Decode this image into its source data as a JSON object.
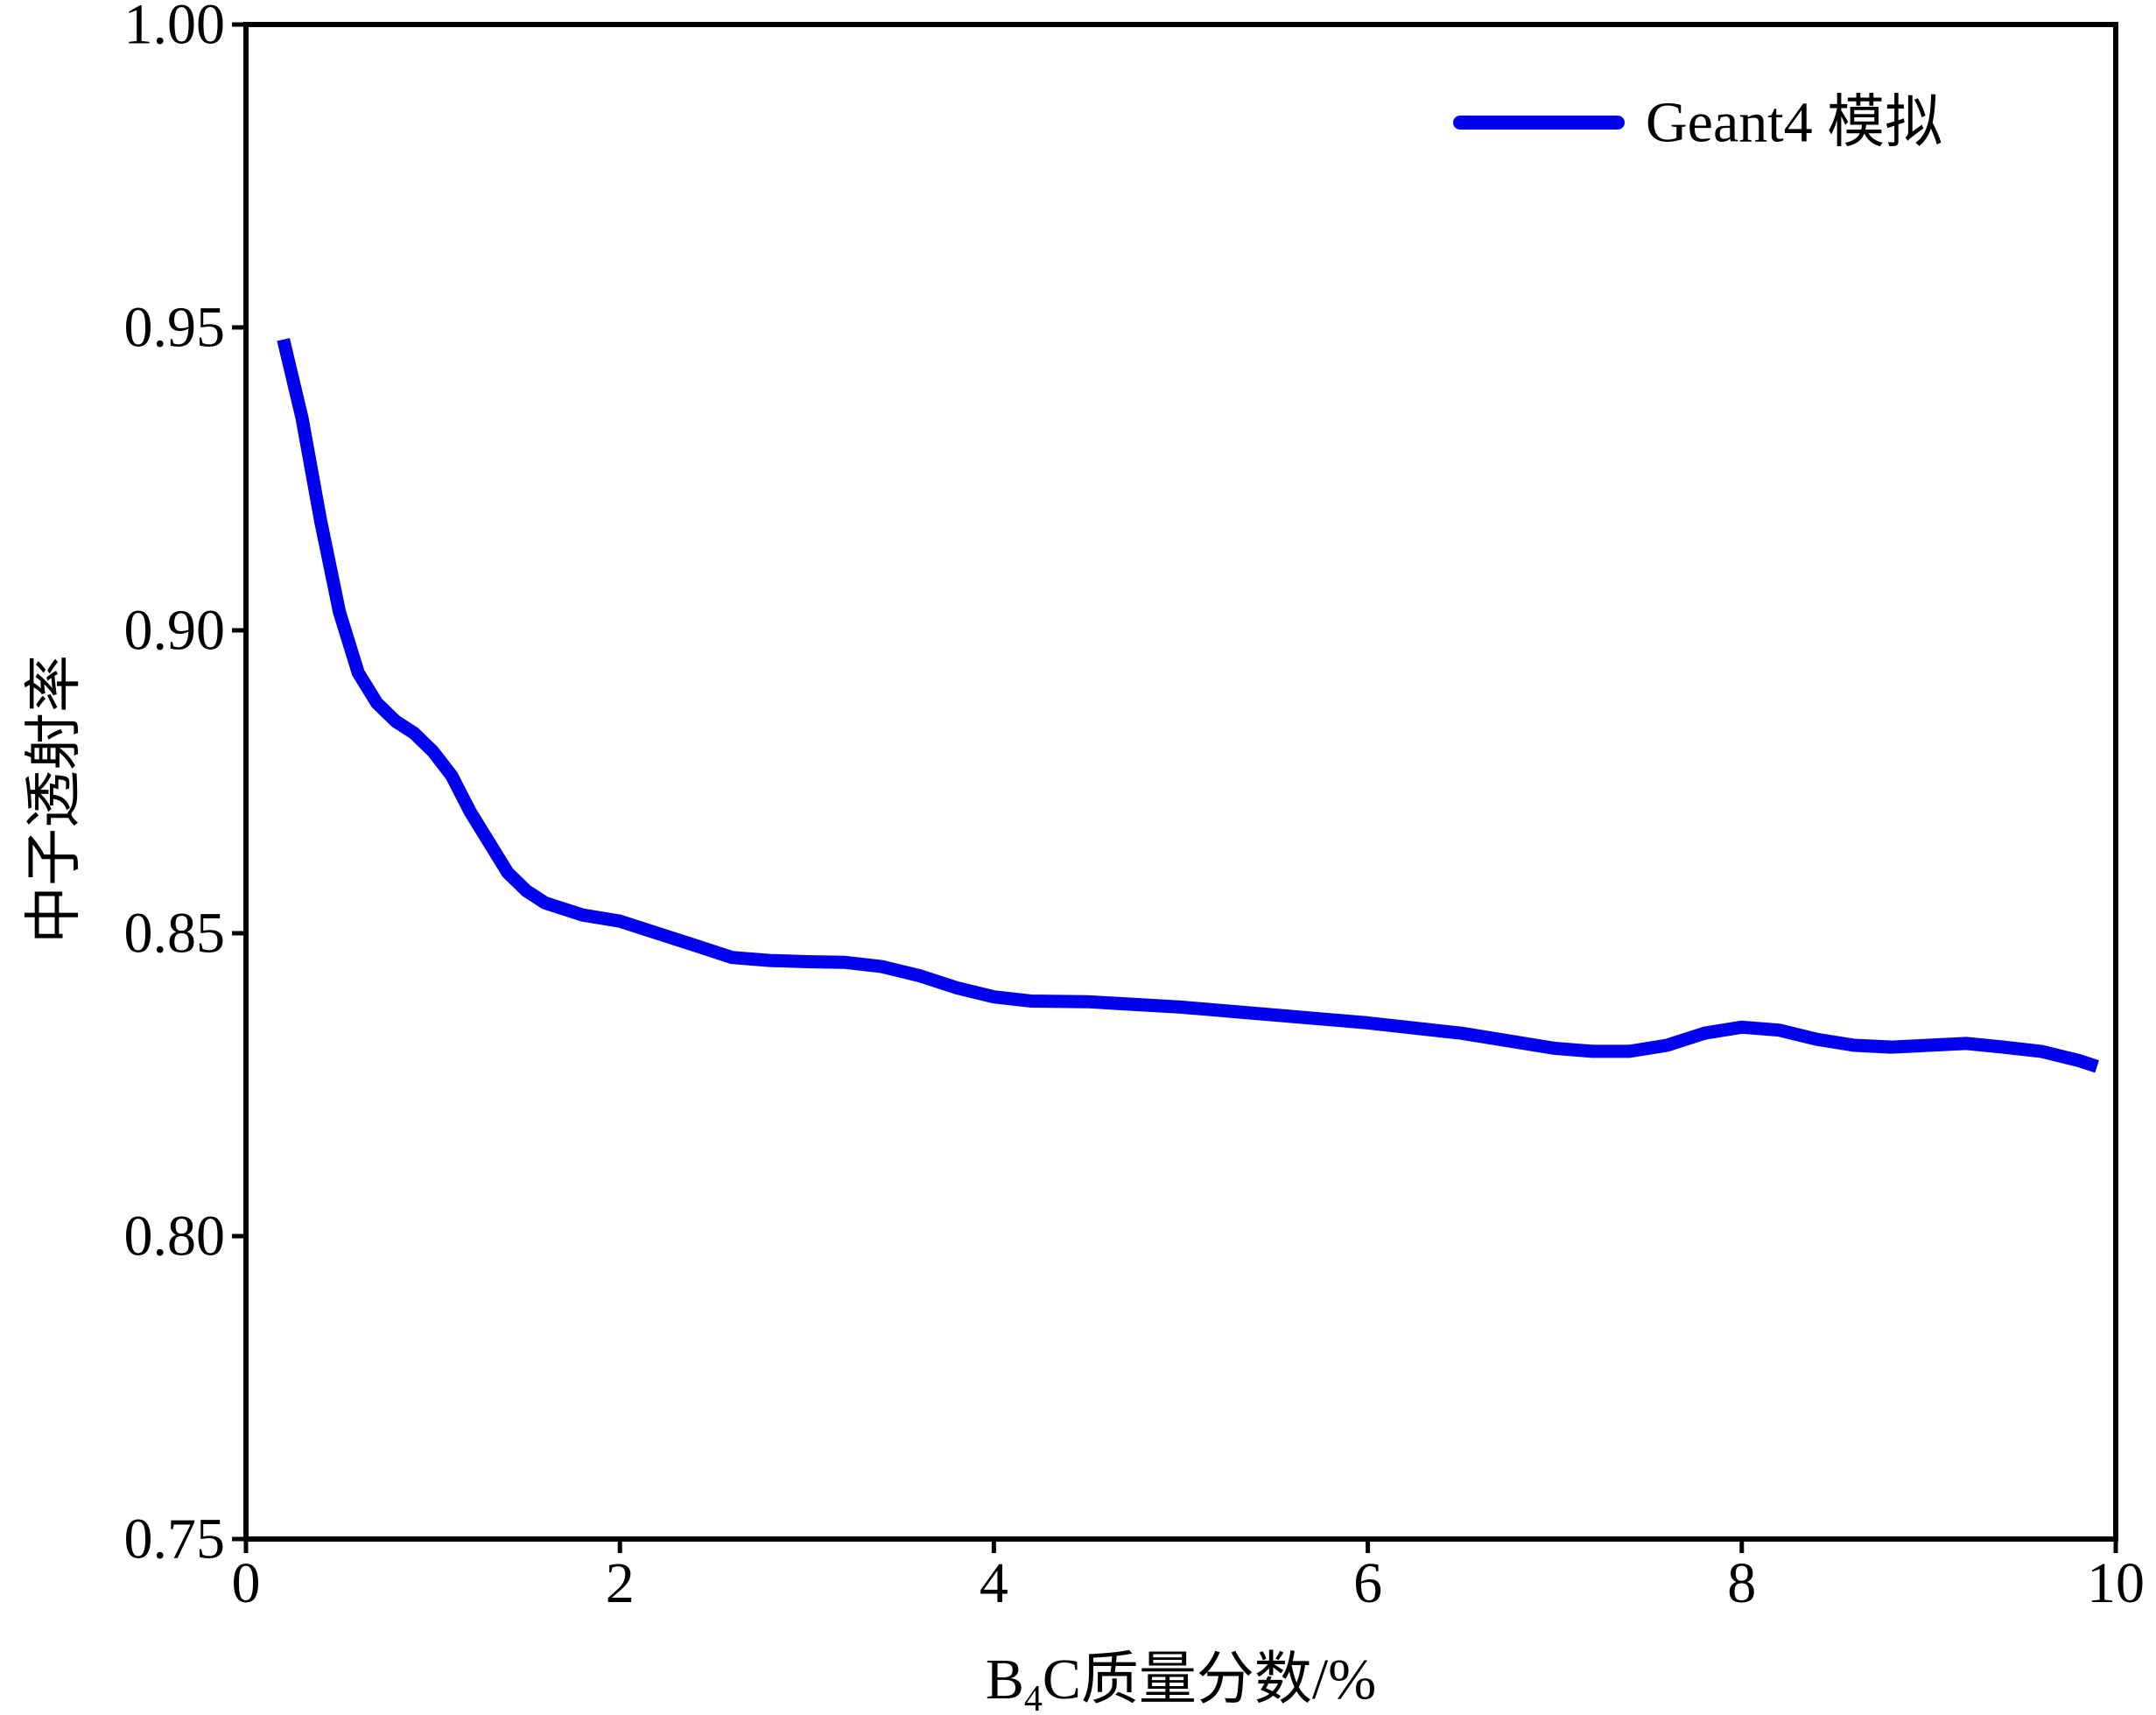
{
  "chart_data": {
    "type": "line",
    "xlabel": {
      "prefix": "B",
      "subscript": "4",
      "suffix": "C质量分数/%"
    },
    "ylabel": "中子透射率",
    "xlim": [
      0,
      10
    ],
    "ylim": [
      0.75,
      1.0
    ],
    "x_ticks": [
      0,
      2,
      4,
      6,
      8,
      10
    ],
    "x_tick_labels": [
      "0",
      "2",
      "4",
      "6",
      "8",
      "10"
    ],
    "y_ticks": [
      0.75,
      0.8,
      0.85,
      0.9,
      0.95,
      1.0
    ],
    "y_tick_labels": [
      "0.75",
      "0.80",
      "0.85",
      "0.90",
      "0.95",
      "1.00"
    ],
    "grid": false,
    "legend_position": "top-right",
    "series": [
      {
        "name": "Geant4 模拟",
        "color": "#0000ee",
        "x": [
          0.2,
          0.3,
          0.4,
          0.5,
          0.6,
          0.7,
          0.8,
          0.9,
          1.0,
          1.1,
          1.2,
          1.3,
          1.4,
          1.5,
          1.6,
          1.7,
          1.8,
          2.0,
          2.2,
          2.4,
          2.6,
          2.8,
          3.0,
          3.2,
          3.4,
          3.6,
          3.8,
          4.0,
          4.2,
          4.5,
          5.0,
          5.5,
          6.0,
          6.5,
          7.0,
          7.2,
          7.4,
          7.6,
          7.8,
          8.0,
          8.2,
          8.4,
          8.6,
          8.8,
          9.0,
          9.2,
          9.4,
          9.6,
          9.8,
          9.9
        ],
        "y": [
          0.948,
          0.935,
          0.918,
          0.903,
          0.893,
          0.888,
          0.885,
          0.883,
          0.88,
          0.876,
          0.87,
          0.865,
          0.86,
          0.857,
          0.855,
          0.854,
          0.853,
          0.852,
          0.85,
          0.848,
          0.846,
          0.8455,
          0.8453,
          0.8452,
          0.8445,
          0.843,
          0.841,
          0.8395,
          0.8388,
          0.8387,
          0.8378,
          0.8365,
          0.8352,
          0.8335,
          0.831,
          0.8305,
          0.8305,
          0.8315,
          0.8335,
          0.8345,
          0.834,
          0.8325,
          0.8315,
          0.8312,
          0.8315,
          0.8318,
          0.8312,
          0.8305,
          0.829,
          0.828
        ]
      }
    ]
  }
}
